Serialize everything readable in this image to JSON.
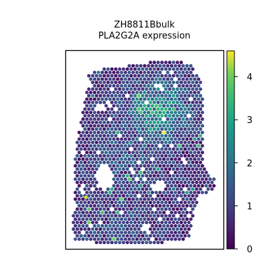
{
  "chart_data": {
    "type": "scatter",
    "subtype": "spatial-hexbin",
    "title_line1": "ZH8811Bbulk",
    "title_line2": "PLA2G2A expression",
    "xlabel": "",
    "ylabel": "",
    "x_ticks": false,
    "y_ticks": false,
    "grid": false,
    "colormap": "viridis",
    "colorbar": {
      "min": 0,
      "max": 4.6,
      "ticks": [
        "0",
        "1",
        "2",
        "3",
        "4"
      ],
      "placement": "right"
    },
    "value_summary": {
      "background_level": 0.3,
      "max_level": 4.6,
      "hotspot_region": "upper-right lobe, values around 2.5–3.5",
      "bright_spots": [
        {
          "region": "upper-right",
          "value": 3.8
        },
        {
          "region": "lower-left",
          "value": 4.5
        }
      ]
    }
  }
}
